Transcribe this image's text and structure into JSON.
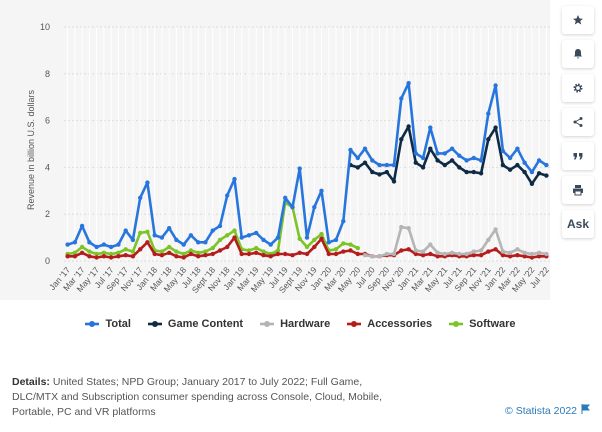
{
  "chart_data": {
    "type": "line",
    "ylabel": "Revenue in billion U.S. dollars",
    "ylim": [
      0,
      10
    ],
    "yticks": [
      0,
      2,
      4,
      6,
      8,
      10
    ],
    "grid": true,
    "legend_position": "bottom",
    "x": [
      "Jan '17",
      "Feb '17",
      "Mar '17",
      "Apr '17",
      "May '17",
      "Jun '17",
      "Jul '17",
      "Aug '17",
      "Sep '17",
      "Oct '17",
      "Nov '17",
      "Dec '17",
      "Jan '18",
      "Feb '18",
      "Mar '18",
      "Apr '18",
      "May '18",
      "Jun '18",
      "Jul '18",
      "Aug '18",
      "Sep '18",
      "Oct '18",
      "Nov '18",
      "Dec '18",
      "Jan '19",
      "Feb '19",
      "Mar '19",
      "Apr '19",
      "May '19",
      "Jun '19",
      "Jul '19",
      "Aug '19",
      "Sep '19",
      "Oct '19",
      "Nov '19",
      "Dec '19",
      "Jan '20",
      "Feb '20",
      "Mar '20",
      "Apr '20",
      "May '20",
      "Jun '20",
      "Jul '20",
      "Aug '20",
      "Sep '20",
      "Oct '20",
      "Nov '20",
      "Dec '20",
      "Jan '21",
      "Feb '21",
      "Mar '21",
      "Apr '21",
      "May '21",
      "Jun '21",
      "Jul '21",
      "Aug '21",
      "Sep '21",
      "Oct '21",
      "Nov '21",
      "Dec '21",
      "Jan '22",
      "Feb '22",
      "Mar '22",
      "Apr '22",
      "May '22",
      "Jun '22",
      "Jul '22"
    ],
    "xtick_labels": [
      "Jan '17",
      "Mar '17",
      "May '17",
      "Jul '17",
      "Sep '17",
      "Nov '17",
      "Jan '18",
      "Mar '18",
      "May '18",
      "Jul '18",
      "Sept '18",
      "Nov '18",
      "Jan '19",
      "Mar '19",
      "May '19",
      "Jul '19",
      "Sept '19",
      "Nov '19",
      "Jan '20",
      "Mar '20",
      "May '20",
      "Jul '20",
      "Sep '20",
      "Nov '20",
      "Jan '21",
      "Mar '21",
      "May '21",
      "Jul '21",
      "Sep '21",
      "Nov '21",
      "Jan '22",
      "Mar '22",
      "May '22",
      "Jul '22"
    ],
    "series": [
      {
        "name": "Total",
        "color": "#2876dd",
        "values": [
          0.7,
          0.8,
          1.5,
          0.8,
          0.6,
          0.7,
          0.6,
          0.7,
          1.3,
          0.9,
          2.7,
          3.35,
          1.1,
          1.0,
          1.4,
          0.9,
          0.7,
          1.1,
          0.8,
          0.8,
          1.3,
          1.5,
          2.8,
          3.5,
          1.0,
          1.1,
          1.2,
          0.9,
          0.7,
          1.0,
          2.7,
          2.3,
          3.95,
          1.0,
          2.3,
          3.0,
          0.8,
          0.9,
          1.7,
          4.75,
          4.4,
          4.8,
          4.3,
          4.1,
          4.1,
          4.1,
          6.95,
          7.6,
          4.6,
          4.4,
          5.7,
          4.6,
          4.6,
          4.8,
          4.5,
          4.3,
          4.4,
          4.3,
          6.3,
          7.5,
          4.7,
          4.4,
          4.8,
          4.2,
          3.8,
          4.3,
          4.1
        ]
      },
      {
        "name": "Game Content",
        "color": "#0f2a44",
        "values": [
          null,
          null,
          null,
          null,
          null,
          null,
          null,
          null,
          null,
          null,
          null,
          null,
          null,
          null,
          null,
          null,
          null,
          null,
          null,
          null,
          null,
          null,
          null,
          null,
          null,
          null,
          null,
          null,
          null,
          null,
          null,
          null,
          null,
          null,
          null,
          null,
          null,
          null,
          null,
          4.1,
          4.0,
          4.2,
          3.8,
          3.7,
          3.8,
          3.4,
          5.2,
          5.75,
          4.2,
          4.0,
          4.8,
          4.3,
          4.1,
          4.3,
          4.0,
          3.8,
          3.8,
          3.75,
          5.2,
          5.7,
          4.1,
          3.9,
          4.1,
          3.8,
          3.3,
          3.75,
          3.65
        ]
      },
      {
        "name": "Hardware",
        "color": "#b5b5b5",
        "values": [
          null,
          null,
          null,
          null,
          null,
          null,
          null,
          null,
          null,
          null,
          null,
          null,
          null,
          null,
          null,
          null,
          null,
          null,
          null,
          null,
          null,
          null,
          null,
          null,
          null,
          null,
          null,
          null,
          null,
          null,
          null,
          null,
          null,
          null,
          null,
          null,
          null,
          null,
          null,
          null,
          null,
          0.25,
          0.2,
          0.2,
          0.3,
          0.3,
          1.45,
          1.4,
          0.45,
          0.4,
          0.7,
          0.35,
          0.3,
          0.35,
          0.3,
          0.3,
          0.4,
          0.45,
          0.9,
          1.35,
          0.4,
          0.35,
          0.5,
          0.35,
          0.3,
          0.35,
          0.3
        ]
      },
      {
        "name": "Accessories",
        "color": "#b51d1d",
        "values": [
          0.2,
          0.2,
          0.35,
          0.2,
          0.15,
          0.2,
          0.15,
          0.2,
          0.25,
          0.2,
          0.5,
          0.8,
          0.3,
          0.25,
          0.35,
          0.2,
          0.15,
          0.3,
          0.2,
          0.25,
          0.3,
          0.45,
          0.6,
          1.0,
          0.3,
          0.3,
          0.35,
          0.25,
          0.2,
          0.3,
          0.3,
          0.25,
          0.35,
          0.3,
          0.6,
          0.95,
          0.3,
          0.3,
          0.4,
          0.45,
          0.3,
          0.3,
          0.2,
          0.2,
          0.25,
          0.25,
          0.45,
          0.5,
          0.3,
          0.25,
          0.3,
          0.2,
          0.2,
          0.25,
          0.2,
          0.2,
          0.25,
          0.25,
          0.4,
          0.5,
          0.25,
          0.2,
          0.25,
          0.2,
          0.15,
          0.2,
          0.2
        ]
      },
      {
        "name": "Software",
        "color": "#7cc427",
        "values": [
          0.3,
          0.35,
          0.6,
          0.4,
          0.3,
          0.35,
          0.3,
          0.35,
          0.5,
          0.4,
          1.2,
          1.25,
          0.45,
          0.4,
          0.6,
          0.4,
          0.3,
          0.45,
          0.35,
          0.4,
          0.55,
          0.9,
          1.1,
          1.3,
          0.5,
          0.45,
          0.55,
          0.4,
          0.3,
          0.45,
          2.5,
          2.3,
          0.95,
          0.6,
          0.9,
          1.15,
          0.45,
          0.5,
          0.75,
          0.7,
          0.55,
          null,
          null,
          null,
          null,
          null,
          null,
          null,
          null,
          null,
          null,
          null,
          null,
          null,
          null,
          null,
          null,
          null,
          null,
          null,
          null,
          null,
          null,
          null,
          null,
          null,
          null
        ]
      }
    ]
  },
  "details": {
    "label": "Details:",
    "text": "United States; NPD Group; January 2017 to July 2022; Full Game, DLC/MTX and Subscription consumer spending across Console, Cloud, Mobile, Portable, PC and VR platforms"
  },
  "credit": "© Statista 2022",
  "toolbar": {
    "items": [
      {
        "name": "favorite-button",
        "icon": "star-icon"
      },
      {
        "name": "notification-button",
        "icon": "bell-icon"
      },
      {
        "name": "settings-button",
        "icon": "gear-icon"
      },
      {
        "name": "share-button",
        "icon": "share-icon"
      },
      {
        "name": "cite-button",
        "icon": "quote-icon"
      },
      {
        "name": "print-button",
        "icon": "printer-icon"
      },
      {
        "name": "ask-button",
        "label": "Ask"
      }
    ]
  }
}
